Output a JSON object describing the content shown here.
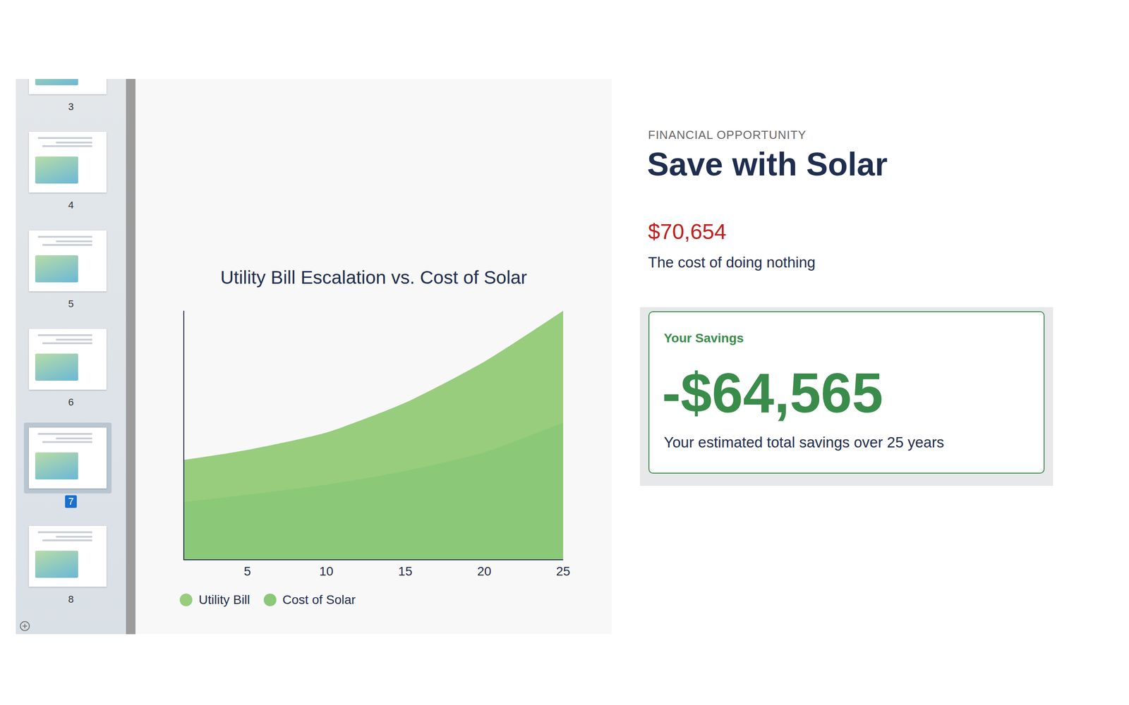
{
  "sidebar": {
    "slides": [
      3,
      4,
      5,
      6,
      7,
      8
    ],
    "selected": 7
  },
  "slide": {
    "eyebrow": "FINANCIAL OPPORTUNITY",
    "heading": "Save with Solar",
    "cost": "$70,654",
    "cost_label": "The cost of doing nothing",
    "savings": {
      "title": "Your Savings",
      "value": "-$64,565",
      "caption": "Your estimated total savings over 25 years"
    }
  },
  "chart_data": {
    "type": "area",
    "title": "Utility Bill Escalation vs. Cost of Solar",
    "x": [
      1,
      5,
      10,
      15,
      20,
      25
    ],
    "series": [
      {
        "name": "Utility Bill",
        "color": "#97cd7c",
        "values": [
          40,
          44,
          51,
          63,
          79.5,
          100
        ]
      },
      {
        "name": "Cost of Solar",
        "color": "#8bc878",
        "values": [
          23,
          26,
          30,
          35.5,
          43,
          55
        ]
      }
    ],
    "xlim": [
      1,
      25
    ],
    "xticks": [
      5,
      10,
      15,
      20,
      25
    ],
    "ylim": [
      0,
      100
    ],
    "tick_labels": "x",
    "grid": false,
    "legend": "bottom"
  }
}
